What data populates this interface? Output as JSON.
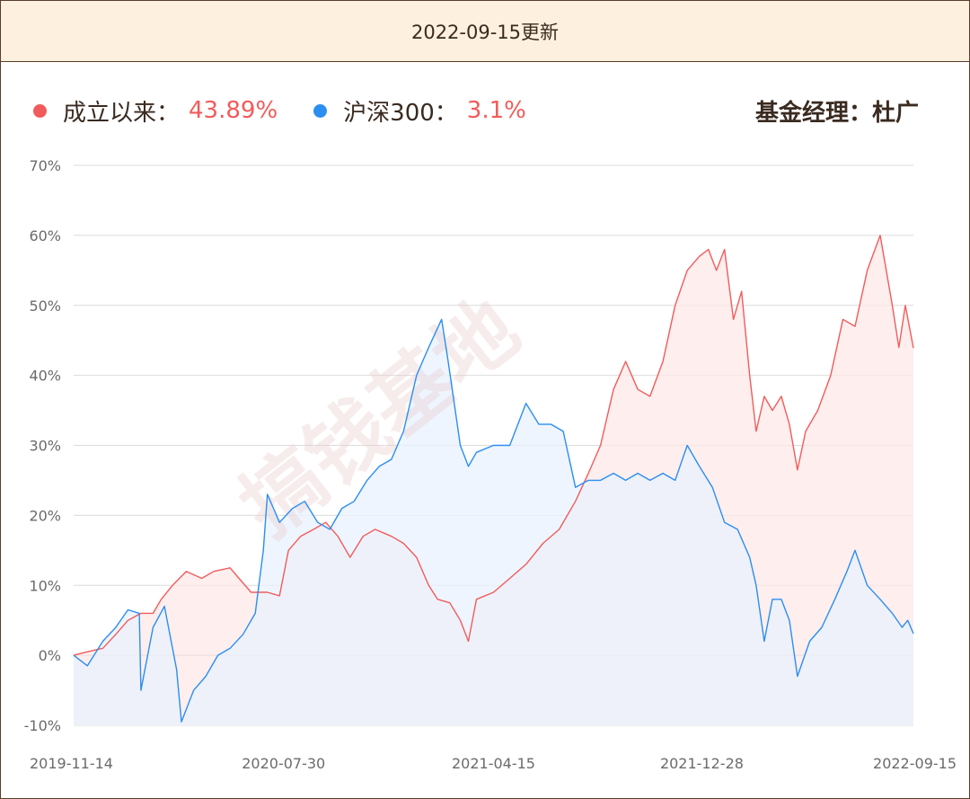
{
  "header": {
    "title": "2022-09-15更新"
  },
  "legend": {
    "items": [
      {
        "name": "成立以来：",
        "value": "43.89%",
        "color": "#f25b5b"
      },
      {
        "name": "沪深300：",
        "value": "3.1%",
        "color": "#2b8ef0"
      }
    ],
    "value_color": "#f25b5b"
  },
  "manager": {
    "text": "基金经理：杜广"
  },
  "watermark": {
    "text": "搞钱基地"
  },
  "chart_data": {
    "type": "area",
    "x_ticks": [
      "2019-11-14",
      "2020-07-30",
      "2021-04-15",
      "2021-12-28",
      "2022-09-15"
    ],
    "x_range": [
      "2019-11-14",
      "2022-09-15"
    ],
    "ylim": [
      -10,
      70
    ],
    "y_ticks": [
      "70%",
      "60%",
      "50%",
      "40%",
      "30%",
      "20%",
      "10%",
      "0%",
      "-10%"
    ],
    "grid": true,
    "legend_position": "top-left",
    "series": [
      {
        "name": "成立以来：",
        "color": "#f25b5b",
        "fill": "#fde8e8",
        "points": [
          [
            "2019-11-14",
            0
          ],
          [
            "2019-12-01",
            0.5
          ],
          [
            "2019-12-20",
            1
          ],
          [
            "2020-01-05",
            3
          ],
          [
            "2020-01-20",
            5
          ],
          [
            "2020-02-05",
            6
          ],
          [
            "2020-02-20",
            6
          ],
          [
            "2020-03-01",
            8
          ],
          [
            "2020-03-15",
            10
          ],
          [
            "2020-04-01",
            12
          ],
          [
            "2020-04-20",
            11
          ],
          [
            "2020-05-05",
            12
          ],
          [
            "2020-05-25",
            12.5
          ],
          [
            "2020-06-05",
            11
          ],
          [
            "2020-06-20",
            9
          ],
          [
            "2020-07-10",
            9
          ],
          [
            "2020-07-25",
            8.5
          ],
          [
            "2020-08-05",
            15
          ],
          [
            "2020-08-20",
            17
          ],
          [
            "2020-09-05",
            18
          ],
          [
            "2020-09-20",
            19
          ],
          [
            "2020-10-05",
            17
          ],
          [
            "2020-10-20",
            14
          ],
          [
            "2020-11-05",
            17
          ],
          [
            "2020-11-20",
            18
          ],
          [
            "2020-12-10",
            17
          ],
          [
            "2020-12-25",
            16
          ],
          [
            "2021-01-10",
            14
          ],
          [
            "2021-01-25",
            10
          ],
          [
            "2021-02-05",
            8
          ],
          [
            "2021-02-20",
            7.5
          ],
          [
            "2021-03-05",
            5
          ],
          [
            "2021-03-15",
            2
          ],
          [
            "2021-03-25",
            8
          ],
          [
            "2021-04-15",
            9
          ],
          [
            "2021-05-05",
            11
          ],
          [
            "2021-05-25",
            13
          ],
          [
            "2021-06-15",
            16
          ],
          [
            "2021-07-05",
            18
          ],
          [
            "2021-07-25",
            22
          ],
          [
            "2021-08-10",
            26
          ],
          [
            "2021-08-25",
            30
          ],
          [
            "2021-09-10",
            38
          ],
          [
            "2021-09-25",
            42
          ],
          [
            "2021-10-10",
            38
          ],
          [
            "2021-10-25",
            37
          ],
          [
            "2021-11-10",
            42
          ],
          [
            "2021-11-25",
            50
          ],
          [
            "2021-12-10",
            55
          ],
          [
            "2021-12-25",
            57
          ],
          [
            "2022-01-05",
            58
          ],
          [
            "2022-01-15",
            55
          ],
          [
            "2022-01-25",
            58
          ],
          [
            "2022-02-05",
            48
          ],
          [
            "2022-02-15",
            52
          ],
          [
            "2022-02-25",
            40
          ],
          [
            "2022-03-05",
            32
          ],
          [
            "2022-03-15",
            37
          ],
          [
            "2022-03-25",
            35
          ],
          [
            "2022-04-05",
            37
          ],
          [
            "2022-04-15",
            33
          ],
          [
            "2022-04-25",
            26.5
          ],
          [
            "2022-05-05",
            32
          ],
          [
            "2022-05-20",
            35
          ],
          [
            "2022-06-05",
            40
          ],
          [
            "2022-06-20",
            48
          ],
          [
            "2022-07-05",
            47
          ],
          [
            "2022-07-20",
            55
          ],
          [
            "2022-08-05",
            60
          ],
          [
            "2022-08-20",
            50
          ],
          [
            "2022-08-28",
            44
          ],
          [
            "2022-09-05",
            50
          ],
          [
            "2022-09-15",
            43.89
          ]
        ]
      },
      {
        "name": "沪深300：",
        "color": "#2b8ef0",
        "fill": "#e8f2fd",
        "points": [
          [
            "2019-11-14",
            0
          ],
          [
            "2019-12-01",
            -1.5
          ],
          [
            "2019-12-20",
            2
          ],
          [
            "2020-01-05",
            4
          ],
          [
            "2020-01-20",
            6.5
          ],
          [
            "2020-02-03",
            6
          ],
          [
            "2020-02-05",
            -5
          ],
          [
            "2020-02-20",
            4
          ],
          [
            "2020-03-05",
            7
          ],
          [
            "2020-03-20",
            -2
          ],
          [
            "2020-03-26",
            -9.5
          ],
          [
            "2020-04-10",
            -5
          ],
          [
            "2020-04-25",
            -3
          ],
          [
            "2020-05-10",
            0
          ],
          [
            "2020-05-25",
            1
          ],
          [
            "2020-06-10",
            3
          ],
          [
            "2020-06-25",
            6
          ],
          [
            "2020-07-05",
            15
          ],
          [
            "2020-07-10",
            23
          ],
          [
            "2020-07-25",
            19
          ],
          [
            "2020-08-10",
            21
          ],
          [
            "2020-08-25",
            22
          ],
          [
            "2020-09-10",
            19
          ],
          [
            "2020-09-25",
            18
          ],
          [
            "2020-10-10",
            21
          ],
          [
            "2020-10-25",
            22
          ],
          [
            "2020-11-10",
            25
          ],
          [
            "2020-11-25",
            27
          ],
          [
            "2020-12-10",
            28
          ],
          [
            "2020-12-25",
            32
          ],
          [
            "2021-01-10",
            40
          ],
          [
            "2021-01-25",
            44
          ],
          [
            "2021-02-10",
            48
          ],
          [
            "2021-02-18",
            42
          ],
          [
            "2021-03-05",
            30
          ],
          [
            "2021-03-15",
            27
          ],
          [
            "2021-03-25",
            29
          ],
          [
            "2021-04-15",
            30
          ],
          [
            "2021-05-05",
            30
          ],
          [
            "2021-05-25",
            36
          ],
          [
            "2021-06-10",
            33
          ],
          [
            "2021-06-25",
            33
          ],
          [
            "2021-07-10",
            32
          ],
          [
            "2021-07-25",
            24
          ],
          [
            "2021-08-10",
            25
          ],
          [
            "2021-08-25",
            25
          ],
          [
            "2021-09-10",
            26
          ],
          [
            "2021-09-25",
            25
          ],
          [
            "2021-10-10",
            26
          ],
          [
            "2021-10-25",
            25
          ],
          [
            "2021-11-10",
            26
          ],
          [
            "2021-11-25",
            25
          ],
          [
            "2021-12-10",
            30
          ],
          [
            "2021-12-25",
            27
          ],
          [
            "2022-01-10",
            24
          ],
          [
            "2022-01-25",
            19
          ],
          [
            "2022-02-10",
            18
          ],
          [
            "2022-02-25",
            14
          ],
          [
            "2022-03-05",
            10
          ],
          [
            "2022-03-15",
            2
          ],
          [
            "2022-03-25",
            8
          ],
          [
            "2022-04-05",
            8
          ],
          [
            "2022-04-15",
            5
          ],
          [
            "2022-04-25",
            -3
          ],
          [
            "2022-05-10",
            2
          ],
          [
            "2022-05-25",
            4
          ],
          [
            "2022-06-10",
            8
          ],
          [
            "2022-06-25",
            12
          ],
          [
            "2022-07-05",
            15
          ],
          [
            "2022-07-20",
            10
          ],
          [
            "2022-08-05",
            8
          ],
          [
            "2022-08-20",
            6
          ],
          [
            "2022-09-01",
            4
          ],
          [
            "2022-09-08",
            5
          ],
          [
            "2022-09-15",
            3.1
          ]
        ]
      }
    ]
  }
}
